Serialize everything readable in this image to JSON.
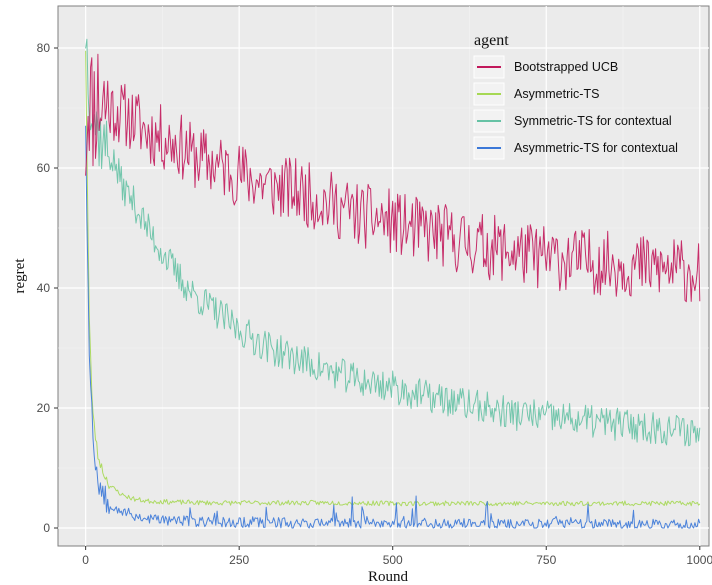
{
  "chart_data": {
    "type": "line",
    "xlabel": "Round",
    "ylabel": "regret",
    "xlim": [
      -45,
      1015
    ],
    "ylim": [
      -3,
      87
    ],
    "xticks": [
      0,
      250,
      500,
      750,
      1000
    ],
    "yticks": [
      0,
      20,
      40,
      60,
      80
    ],
    "grid": true,
    "legend_title": "agent",
    "legend_position": "top-right",
    "series": [
      {
        "name": "Bootstrapped UCB",
        "color": "#c2185b",
        "x": [
          0,
          5,
          10,
          20,
          40,
          60,
          80,
          100,
          125,
          150,
          175,
          200,
          225,
          250,
          275,
          300,
          325,
          350,
          375,
          400,
          425,
          450,
          475,
          500,
          525,
          550,
          575,
          600,
          625,
          650,
          675,
          700,
          725,
          750,
          775,
          800,
          825,
          850,
          875,
          900,
          925,
          950,
          975,
          1000
        ],
        "y": [
          65,
          74,
          70,
          72,
          70,
          69,
          68,
          66,
          65,
          64,
          62,
          61,
          60,
          59,
          58,
          57,
          56.5,
          56,
          55,
          54,
          53,
          52,
          51.5,
          51,
          50,
          49.5,
          49,
          48,
          47.5,
          47,
          46.5,
          46,
          45.5,
          45,
          45,
          44.5,
          44.5,
          44,
          44,
          43.5,
          43.5,
          43,
          43,
          42.5
        ]
      },
      {
        "name": "Asymmetric-TS",
        "color": "#a6d854",
        "x": [
          0,
          3,
          6,
          10,
          15,
          20,
          30,
          40,
          60,
          80,
          100,
          150,
          200,
          300,
          400,
          500,
          600,
          700,
          800,
          900,
          1000
        ],
        "y": [
          80,
          55,
          35,
          22,
          16,
          12,
          9,
          7,
          5.5,
          4.8,
          4.5,
          4.3,
          4.2,
          4.2,
          4.2,
          4.1,
          4.1,
          4.1,
          4.1,
          4.1,
          4.1
        ]
      },
      {
        "name": "Symmetric-TS for contextual",
        "color": "#66c2a5",
        "x": [
          0,
          5,
          10,
          20,
          30,
          40,
          50,
          60,
          80,
          100,
          125,
          150,
          175,
          200,
          250,
          300,
          350,
          400,
          450,
          500,
          550,
          600,
          650,
          700,
          750,
          800,
          850,
          900,
          950,
          1000
        ],
        "y": [
          83,
          75,
          70,
          66,
          64,
          62,
          60,
          57,
          54,
          50,
          46,
          42,
          39,
          37,
          33,
          30,
          28,
          26,
          24.5,
          23.5,
          22,
          21,
          20,
          19,
          18.5,
          18,
          17.5,
          17,
          16.5,
          16
        ]
      },
      {
        "name": "Asymmetric-TS for contextual",
        "color": "#3b78d8",
        "x": [
          0,
          3,
          6,
          10,
          15,
          20,
          30,
          40,
          60,
          80,
          100,
          150,
          200,
          300,
          400,
          500,
          600,
          700,
          800,
          900,
          1000
        ],
        "y": [
          68,
          45,
          30,
          18,
          12,
          8,
          5,
          4,
          2.8,
          2,
          1.6,
          1.2,
          1,
          0.9,
          0.8,
          0.8,
          0.7,
          0.7,
          0.7,
          0.6,
          0.6
        ]
      }
    ]
  }
}
